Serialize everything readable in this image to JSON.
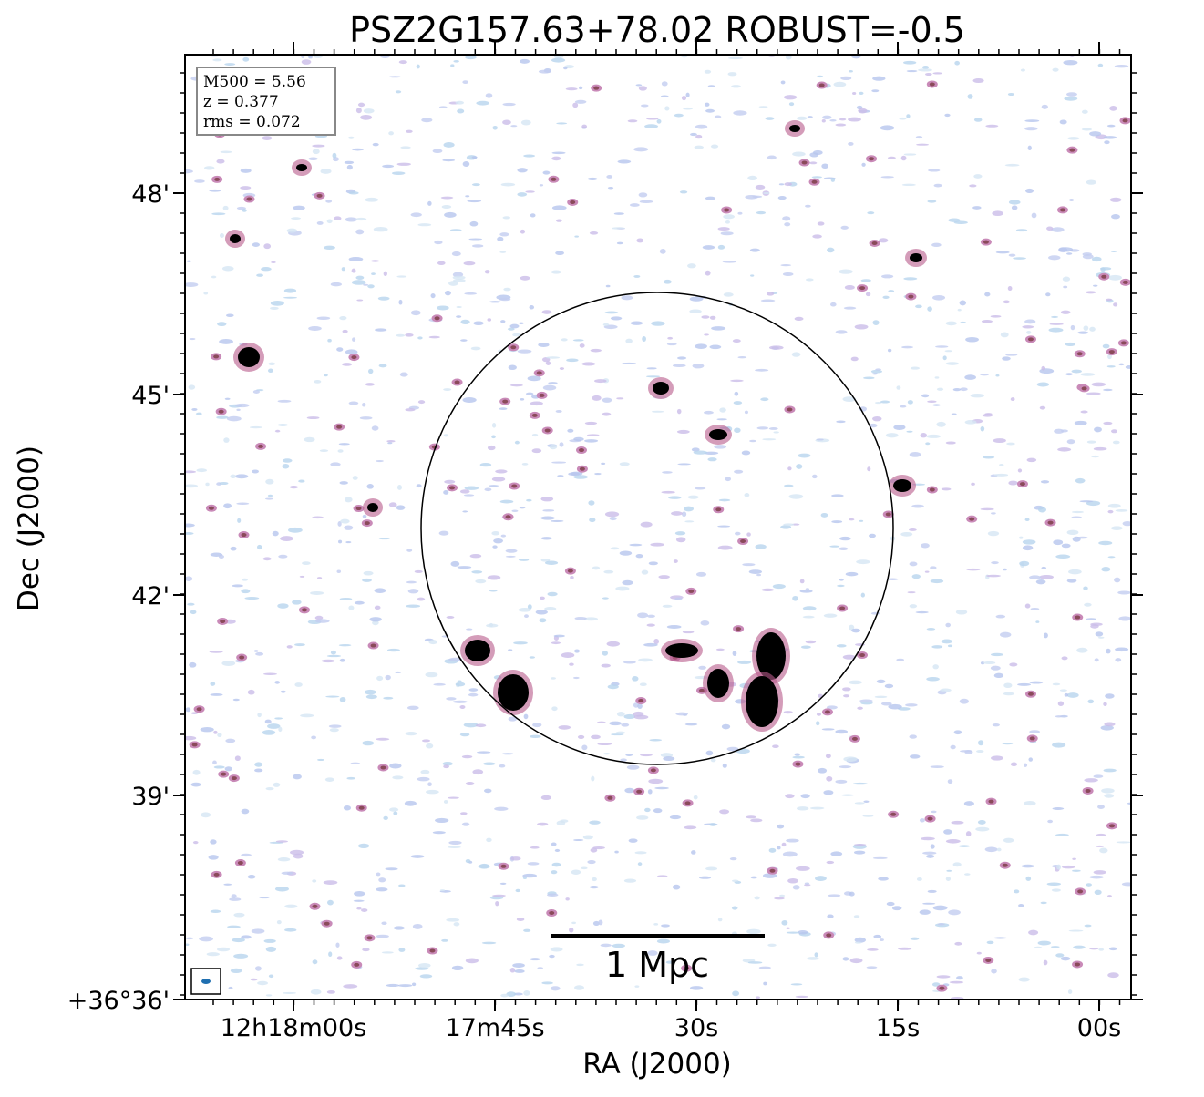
{
  "title": "PSZ2G157.63+78.02 ROBUST=-0.5",
  "info": [
    "M500 = 5.56",
    "z = 0.377",
    "rms = 0.072"
  ],
  "x_axis": {
    "label": "RA (J2000)",
    "ticks": [
      "12h18m00s",
      "17m45s",
      "30s",
      "15s",
      "00s"
    ]
  },
  "y_axis": {
    "label": "Dec (J2000)",
    "ticks": [
      "48'",
      "45'",
      "42'",
      "39'",
      "+36°36'"
    ]
  },
  "scale_bar": "1 Mpc"
}
